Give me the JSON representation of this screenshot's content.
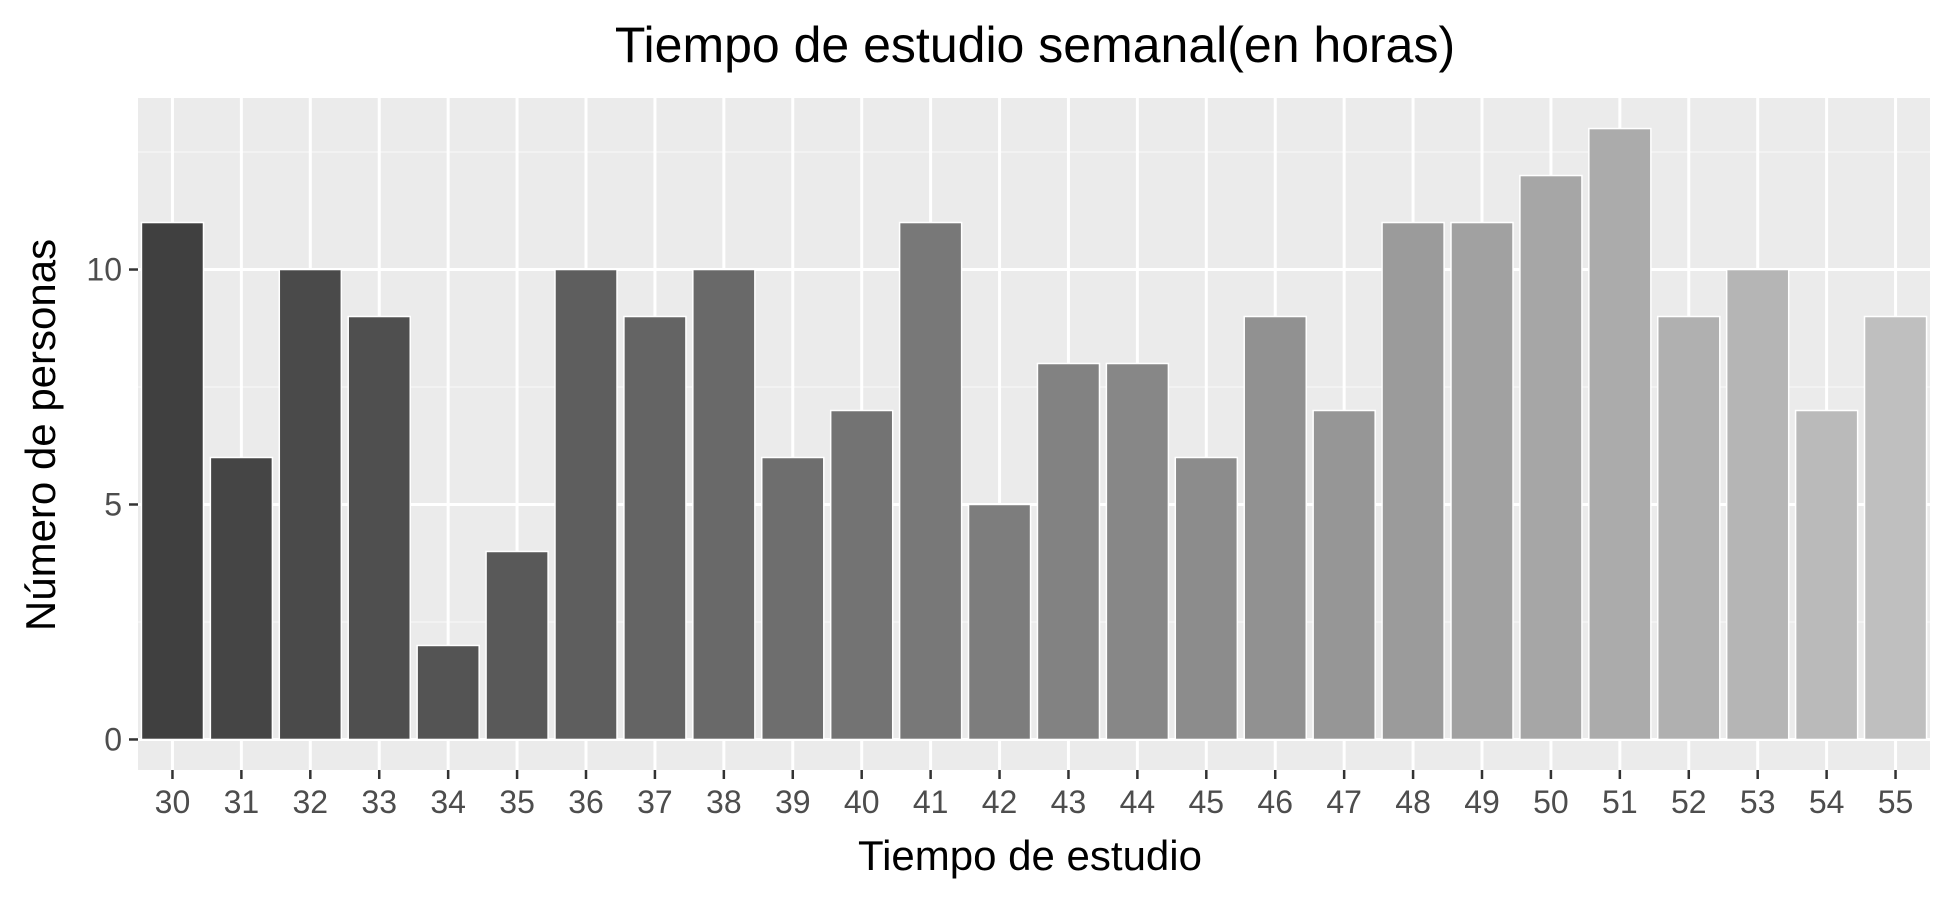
{
  "chart_data": {
    "type": "bar",
    "title": "Tiempo de estudio semanal(en horas)",
    "xlabel": "Tiempo de estudio",
    "ylabel": "Número de personas",
    "categories": [
      "30",
      "31",
      "32",
      "33",
      "34",
      "35",
      "36",
      "37",
      "38",
      "39",
      "40",
      "41",
      "42",
      "43",
      "44",
      "45",
      "46",
      "47",
      "48",
      "49",
      "50",
      "51",
      "52",
      "53",
      "54",
      "55"
    ],
    "values": [
      11,
      6,
      10,
      9,
      2,
      4,
      10,
      9,
      10,
      6,
      7,
      11,
      5,
      8,
      8,
      6,
      9,
      7,
      11,
      11,
      12,
      13,
      9,
      10,
      7,
      9
    ],
    "ylim": [
      -0.65,
      13.65
    ],
    "yticks": [
      0,
      5,
      10
    ],
    "grid": true,
    "legend": "none",
    "colors": {
      "panel_background": "#ebebeb",
      "grid_major": "#ffffff",
      "grid_minor": "#f5f5f5",
      "bar_fill_start": "#404040",
      "bar_fill_end": "#bfbfbf",
      "tick_color": "#333333"
    }
  }
}
